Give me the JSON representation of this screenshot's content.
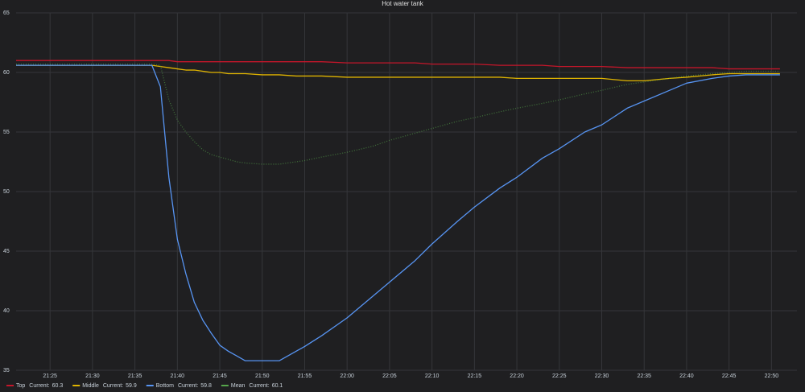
{
  "chart_data": {
    "type": "line",
    "title": "Hot water tank",
    "x": [
      "21:21",
      "21:25",
      "21:30",
      "21:35",
      "21:37",
      "21:38",
      "21:39",
      "21:40",
      "21:41",
      "21:42",
      "21:43",
      "21:44",
      "21:45",
      "21:46",
      "21:47",
      "21:48",
      "21:50",
      "21:52",
      "21:54",
      "21:55",
      "21:57",
      "22:00",
      "22:03",
      "22:05",
      "22:08",
      "22:10",
      "22:13",
      "22:15",
      "22:18",
      "22:20",
      "22:23",
      "22:25",
      "22:28",
      "22:30",
      "22:33",
      "22:35",
      "22:38",
      "22:40",
      "22:43",
      "22:45",
      "22:47",
      "22:51"
    ],
    "xlim": [
      "21:21",
      "22:53"
    ],
    "xticks": [
      "21:25",
      "21:30",
      "21:35",
      "21:40",
      "21:45",
      "21:50",
      "21:55",
      "22:00",
      "22:05",
      "22:10",
      "22:15",
      "22:20",
      "22:25",
      "22:30",
      "22:35",
      "22:40",
      "22:45",
      "22:50"
    ],
    "ylim": [
      35,
      65
    ],
    "yticks": [
      35,
      40,
      45,
      50,
      55,
      60,
      65
    ],
    "grid": true,
    "legend_label": "Current:",
    "series": [
      {
        "name": "Top",
        "color": "#c4162a",
        "dash": "solid",
        "current": 60.3,
        "values": [
          61.0,
          61.0,
          61.0,
          61.0,
          61.0,
          61.0,
          61.0,
          60.9,
          60.9,
          60.9,
          60.9,
          60.9,
          60.9,
          60.9,
          60.9,
          60.9,
          60.9,
          60.9,
          60.9,
          60.9,
          60.9,
          60.8,
          60.8,
          60.8,
          60.8,
          60.7,
          60.7,
          60.7,
          60.6,
          60.6,
          60.6,
          60.5,
          60.5,
          60.5,
          60.4,
          60.4,
          60.4,
          60.4,
          60.4,
          60.3,
          60.3,
          60.3
        ]
      },
      {
        "name": "Middle",
        "color": "#e0b400",
        "dash": "solid",
        "current": 59.9,
        "values": [
          60.6,
          60.6,
          60.6,
          60.6,
          60.6,
          60.5,
          60.4,
          60.3,
          60.2,
          60.2,
          60.1,
          60.0,
          60.0,
          59.9,
          59.9,
          59.9,
          59.8,
          59.8,
          59.7,
          59.7,
          59.7,
          59.6,
          59.6,
          59.6,
          59.6,
          59.6,
          59.6,
          59.6,
          59.6,
          59.5,
          59.5,
          59.5,
          59.5,
          59.5,
          59.3,
          59.3,
          59.5,
          59.6,
          59.8,
          59.9,
          59.9,
          59.9
        ]
      },
      {
        "name": "Bottom",
        "color": "#5794f2",
        "dash": "solid",
        "current": 59.8,
        "values": [
          60.6,
          60.6,
          60.6,
          60.6,
          60.6,
          58.8,
          51.2,
          46.0,
          43.1,
          40.7,
          39.2,
          38.1,
          37.1,
          36.6,
          36.2,
          35.8,
          35.8,
          35.8,
          36.6,
          37.0,
          37.9,
          39.4,
          41.2,
          42.4,
          44.2,
          45.6,
          47.5,
          48.7,
          50.3,
          51.2,
          52.8,
          53.6,
          55.0,
          55.6,
          57.0,
          57.6,
          58.5,
          59.1,
          59.5,
          59.7,
          59.8,
          59.8
        ]
      },
      {
        "name": "Mean",
        "color": "#56a64b",
        "dash": "dotted",
        "current": 60.1,
        "values": [
          60.7,
          60.7,
          60.7,
          60.7,
          60.7,
          60.6,
          57.7,
          56.0,
          55.0,
          54.2,
          53.5,
          53.1,
          52.9,
          52.7,
          52.5,
          52.4,
          52.3,
          52.3,
          52.5,
          52.6,
          52.9,
          53.3,
          53.8,
          54.3,
          54.9,
          55.3,
          55.9,
          56.2,
          56.7,
          57.0,
          57.4,
          57.7,
          58.2,
          58.5,
          59.0,
          59.2,
          59.5,
          59.7,
          59.9,
          60.0,
          60.1,
          60.1
        ]
      }
    ]
  }
}
